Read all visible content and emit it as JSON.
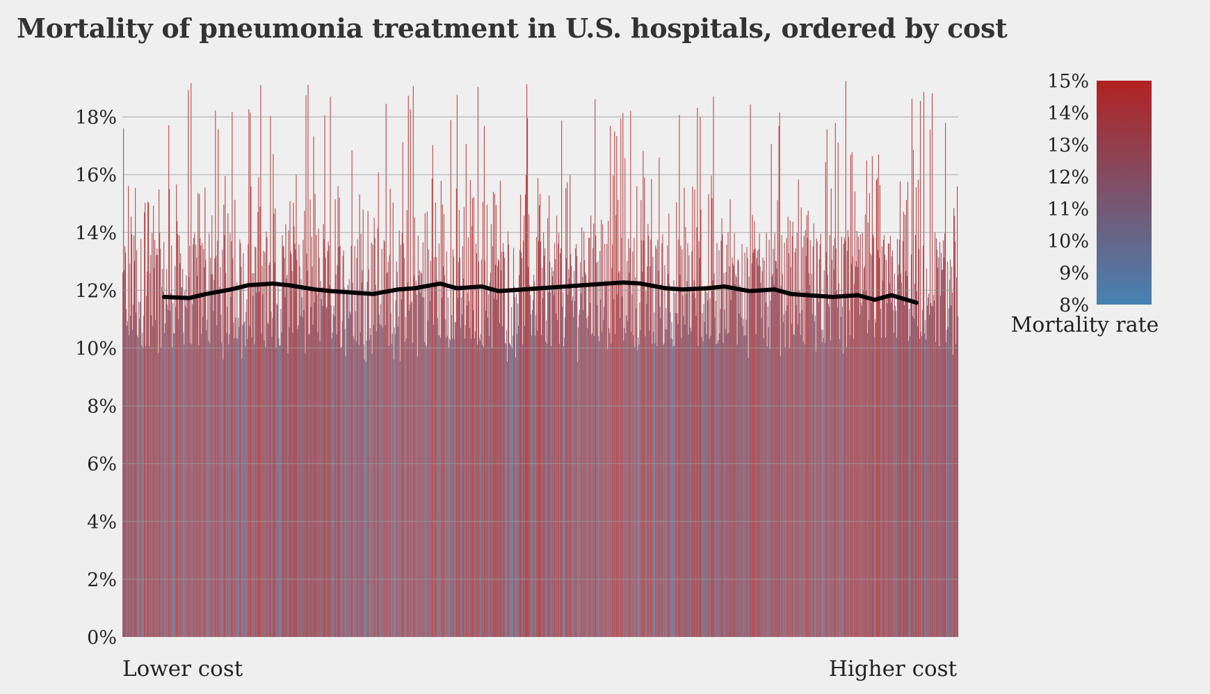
{
  "chart_data": {
    "type": "bar",
    "title": "Mortality of pneumonia treatment in U.S. hospitals, ordered by cost",
    "xlabel_left": "Lower cost",
    "xlabel_right": "Higher cost",
    "ylabel": "",
    "ylim": [
      0,
      19.5
    ],
    "yticks": [
      0,
      2,
      4,
      6,
      8,
      10,
      12,
      14,
      16,
      18
    ],
    "ytick_labels": [
      "0%",
      "2%",
      "4%",
      "6%",
      "8%",
      "10%",
      "12%",
      "14%",
      "16%",
      "18%"
    ],
    "grid": true,
    "n_hospitals": 1200,
    "bar_values_typical_range": [
      10,
      14
    ],
    "bar_values_max_approx": 19.3,
    "rolling_average": {
      "color": "#000000",
      "x_range_fraction": [
        0.05,
        0.95
      ],
      "points": [
        [
          0.05,
          11.8
        ],
        [
          0.08,
          11.7
        ],
        [
          0.1,
          11.9
        ],
        [
          0.13,
          12.0
        ],
        [
          0.15,
          12.2
        ],
        [
          0.18,
          12.2
        ],
        [
          0.2,
          12.2
        ],
        [
          0.23,
          12.0
        ],
        [
          0.25,
          12.0
        ],
        [
          0.27,
          11.9
        ],
        [
          0.3,
          11.9
        ],
        [
          0.33,
          12.0
        ],
        [
          0.35,
          12.1
        ],
        [
          0.38,
          12.2
        ],
        [
          0.4,
          12.1
        ],
        [
          0.43,
          12.1
        ],
        [
          0.45,
          12.0
        ],
        [
          0.48,
          12.0
        ],
        [
          0.5,
          12.1
        ],
        [
          0.53,
          12.1
        ],
        [
          0.55,
          12.2
        ],
        [
          0.58,
          12.2
        ],
        [
          0.6,
          12.3
        ],
        [
          0.62,
          12.2
        ],
        [
          0.65,
          12.1
        ],
        [
          0.67,
          12.0
        ],
        [
          0.7,
          12.1
        ],
        [
          0.72,
          12.1
        ],
        [
          0.75,
          12.0
        ],
        [
          0.78,
          12.0
        ],
        [
          0.8,
          11.9
        ],
        [
          0.82,
          11.8
        ],
        [
          0.85,
          11.8
        ],
        [
          0.88,
          11.8
        ],
        [
          0.9,
          11.7
        ],
        [
          0.92,
          11.8
        ],
        [
          0.95,
          11.6
        ]
      ]
    },
    "colorbar": {
      "title": "Mortality rate",
      "min": 8,
      "max": 15,
      "ticks": [
        8,
        9,
        10,
        11,
        12,
        13,
        14,
        15
      ],
      "tick_labels": [
        "8%",
        "9%",
        "10%",
        "11%",
        "12%",
        "13%",
        "14%",
        "15%"
      ],
      "color_low": "#4682b4",
      "color_high": "#b22222"
    }
  }
}
